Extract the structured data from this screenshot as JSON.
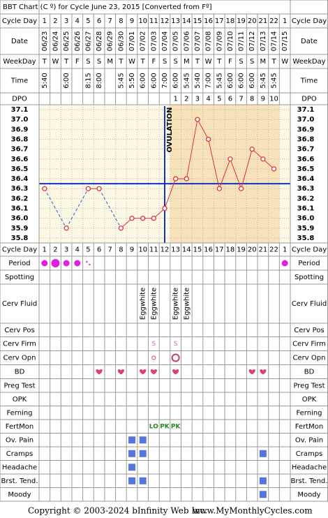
{
  "title": "BBT Chart (C º) for Cycle June 23, 2015  [Converted from Fº]",
  "row_labels": {
    "cycle_day": "Cycle Day",
    "date": "Date",
    "weekday": "WeekDay",
    "time": "Time",
    "dpo": "DPO"
  },
  "days": {
    "cycle_day": [
      "1",
      "2",
      "3",
      "4",
      "5",
      "6",
      "7",
      "8",
      "9",
      "10",
      "11",
      "12",
      "13",
      "14",
      "15",
      "16",
      "17",
      "18",
      "19",
      "20",
      "21",
      "22",
      "1"
    ],
    "date": [
      "06/23",
      "06/24",
      "06/25",
      "06/26",
      "06/27",
      "06/28",
      "06/29",
      "06/30",
      "07/01",
      "07/02",
      "07/03",
      "07/04",
      "07/05",
      "07/06",
      "07/07",
      "07/08",
      "07/09",
      "07/10",
      "07/11",
      "07/12",
      "07/13",
      "07/14",
      "07/15"
    ],
    "weekday": [
      "T",
      "W",
      "T",
      "F",
      "S",
      "S",
      "M",
      "T",
      "W",
      "T",
      "F",
      "S",
      "S",
      "M",
      "T",
      "W",
      "T",
      "F",
      "S",
      "S",
      "M",
      "T",
      "W"
    ],
    "time": [
      "5:40",
      null,
      "6:00",
      null,
      "8:15",
      "8:00",
      null,
      "5:45",
      "5:50",
      "6:00",
      "6:00",
      "7:00",
      "6:00",
      "5:45",
      "5:40",
      "7:00",
      "5:45",
      "6:00",
      "6:00",
      "6:00",
      "5:45",
      "5:45",
      null
    ],
    "dpo": [
      null,
      null,
      null,
      null,
      null,
      null,
      null,
      null,
      null,
      null,
      null,
      null,
      "1",
      "2",
      "3",
      "4",
      "5",
      "6",
      "7",
      "8",
      "9",
      "10",
      null
    ]
  },
  "chart_data": {
    "type": "line",
    "values": [
      36.3,
      null,
      35.9,
      null,
      36.3,
      36.3,
      null,
      35.9,
      36.0,
      36.0,
      36.0,
      36.1,
      36.4,
      36.4,
      37.0,
      36.8,
      36.3,
      36.6,
      36.3,
      36.7,
      36.6,
      36.5,
      null
    ],
    "ylim": [
      35.75,
      37.15
    ],
    "yticks": [
      37.1,
      {
        "value": 37,
        "label": "37.0"
      },
      36.9,
      36.8,
      36.7,
      36.6,
      36.5,
      36.4,
      36.3,
      36.2,
      36.1,
      {
        "value": 36,
        "label": "36.0"
      },
      35.9,
      35.8
    ],
    "coverline": 36.35,
    "ovulation_day": 12,
    "ovulation_label": "OVULATION",
    "line_color": "#e0303a",
    "gap_color": "#3355dd",
    "coverline_color": "#1133cc"
  },
  "symptoms": [
    {
      "label": "Period",
      "days": [
        "medium",
        "heavy",
        "medium",
        "medium",
        "spotting",
        null,
        null,
        null,
        null,
        null,
        null,
        null,
        null,
        null,
        null,
        null,
        null,
        null,
        null,
        null,
        null,
        null,
        "medium"
      ]
    },
    {
      "label": "Spotting",
      "days": []
    },
    {
      "label": "Cerv Fluid",
      "days": [
        null,
        null,
        null,
        null,
        null,
        null,
        null,
        null,
        null,
        "Eggwhite",
        "Eggwhite",
        null,
        "Eggwhite",
        "Eggwhite"
      ]
    },
    {
      "label": "Cerv Pos",
      "days": []
    },
    {
      "label": "Cerv Firm",
      "days": [
        null,
        null,
        null,
        null,
        null,
        null,
        null,
        null,
        null,
        null,
        "S",
        null,
        "S"
      ]
    },
    {
      "label": "Cerv Opn",
      "days": [
        null,
        null,
        null,
        null,
        null,
        null,
        null,
        null,
        null,
        null,
        "small",
        null,
        "large"
      ]
    },
    {
      "label": "BD",
      "days": [
        null,
        null,
        null,
        null,
        null,
        true,
        null,
        true,
        null,
        true,
        true,
        null,
        true,
        null,
        null,
        null,
        null,
        null,
        null,
        true,
        true
      ]
    },
    {
      "label": "Preg Test",
      "days": []
    },
    {
      "label": "OPK",
      "days": []
    },
    {
      "label": "Ferning",
      "days": []
    },
    {
      "label": "FertMon",
      "days": [
        null,
        null,
        null,
        null,
        null,
        null,
        null,
        null,
        null,
        null,
        "LO",
        "PK",
        "PK"
      ]
    },
    {
      "label": "Ov. Pain",
      "days": [
        null,
        null,
        null,
        null,
        null,
        null,
        null,
        null,
        true,
        true
      ]
    },
    {
      "label": "Cramps",
      "days": [
        null,
        null,
        null,
        null,
        null,
        null,
        null,
        null,
        true,
        true,
        null,
        null,
        null,
        null,
        null,
        null,
        null,
        null,
        null,
        null,
        true
      ]
    },
    {
      "label": "Headache",
      "days": [
        null,
        null,
        null,
        null,
        null,
        null,
        null,
        null,
        true
      ]
    },
    {
      "label": "Brst. Tend.",
      "days": [
        null,
        null,
        null,
        null,
        null,
        null,
        null,
        null,
        true,
        true,
        null,
        null,
        null,
        null,
        null,
        null,
        null,
        null,
        null,
        null,
        true
      ]
    },
    {
      "label": "Moody",
      "days": [
        null,
        null,
        null,
        null,
        null,
        null,
        null,
        null,
        null,
        null,
        null,
        null,
        null,
        null,
        null,
        null,
        null,
        null,
        null,
        null,
        true
      ]
    }
  ],
  "footer": {
    "copyright": "Copyright © 2003-2024 bInfinity Web Inc.",
    "site": "www.MyMonthlyCycles.com"
  }
}
